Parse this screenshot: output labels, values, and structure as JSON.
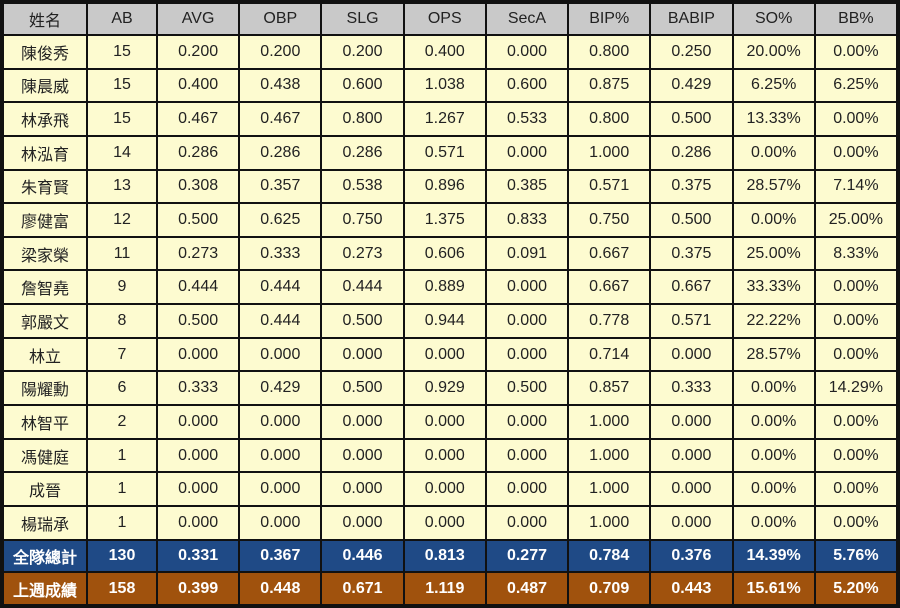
{
  "headers": [
    "姓名",
    "AB",
    "AVG",
    "OBP",
    "SLG",
    "OPS",
    "SecA",
    "BIP%",
    "BABIP",
    "SO%",
    "BB%"
  ],
  "rows": [
    [
      "陳俊秀",
      "15",
      "0.200",
      "0.200",
      "0.200",
      "0.400",
      "0.000",
      "0.800",
      "0.250",
      "20.00%",
      "0.00%"
    ],
    [
      "陳晨威",
      "15",
      "0.400",
      "0.438",
      "0.600",
      "1.038",
      "0.600",
      "0.875",
      "0.429",
      "6.25%",
      "6.25%"
    ],
    [
      "林承飛",
      "15",
      "0.467",
      "0.467",
      "0.800",
      "1.267",
      "0.533",
      "0.800",
      "0.500",
      "13.33%",
      "0.00%"
    ],
    [
      "林泓育",
      "14",
      "0.286",
      "0.286",
      "0.286",
      "0.571",
      "0.000",
      "1.000",
      "0.286",
      "0.00%",
      "0.00%"
    ],
    [
      "朱育賢",
      "13",
      "0.308",
      "0.357",
      "0.538",
      "0.896",
      "0.385",
      "0.571",
      "0.375",
      "28.57%",
      "7.14%"
    ],
    [
      "廖健富",
      "12",
      "0.500",
      "0.625",
      "0.750",
      "1.375",
      "0.833",
      "0.750",
      "0.500",
      "0.00%",
      "25.00%"
    ],
    [
      "梁家榮",
      "11",
      "0.273",
      "0.333",
      "0.273",
      "0.606",
      "0.091",
      "0.667",
      "0.375",
      "25.00%",
      "8.33%"
    ],
    [
      "詹智堯",
      "9",
      "0.444",
      "0.444",
      "0.444",
      "0.889",
      "0.000",
      "0.667",
      "0.667",
      "33.33%",
      "0.00%"
    ],
    [
      "郭嚴文",
      "8",
      "0.500",
      "0.444",
      "0.500",
      "0.944",
      "0.000",
      "0.778",
      "0.571",
      "22.22%",
      "0.00%"
    ],
    [
      "林立",
      "7",
      "0.000",
      "0.000",
      "0.000",
      "0.000",
      "0.000",
      "0.714",
      "0.000",
      "28.57%",
      "0.00%"
    ],
    [
      "陽耀勳",
      "6",
      "0.333",
      "0.429",
      "0.500",
      "0.929",
      "0.500",
      "0.857",
      "0.333",
      "0.00%",
      "14.29%"
    ],
    [
      "林智平",
      "2",
      "0.000",
      "0.000",
      "0.000",
      "0.000",
      "0.000",
      "1.000",
      "0.000",
      "0.00%",
      "0.00%"
    ],
    [
      "馮健庭",
      "1",
      "0.000",
      "0.000",
      "0.000",
      "0.000",
      "0.000",
      "1.000",
      "0.000",
      "0.00%",
      "0.00%"
    ],
    [
      "成晉",
      "1",
      "0.000",
      "0.000",
      "0.000",
      "0.000",
      "0.000",
      "1.000",
      "0.000",
      "0.00%",
      "0.00%"
    ],
    [
      "楊瑞承",
      "1",
      "0.000",
      "0.000",
      "0.000",
      "0.000",
      "0.000",
      "1.000",
      "0.000",
      "0.00%",
      "0.00%"
    ]
  ],
  "team_total": [
    "全隊總計",
    "130",
    "0.331",
    "0.367",
    "0.446",
    "0.813",
    "0.277",
    "0.784",
    "0.376",
    "14.39%",
    "5.76%"
  ],
  "last_week": [
    "上週成績",
    "158",
    "0.399",
    "0.448",
    "0.671",
    "1.119",
    "0.487",
    "0.709",
    "0.443",
    "15.61%",
    "5.20%"
  ],
  "colors": {
    "header_bg": "#c9c9c9",
    "row_bg": "#fdfbd0",
    "total_bg": "#1f4a86",
    "last_week_bg": "#a0520d",
    "border": "#111111"
  }
}
